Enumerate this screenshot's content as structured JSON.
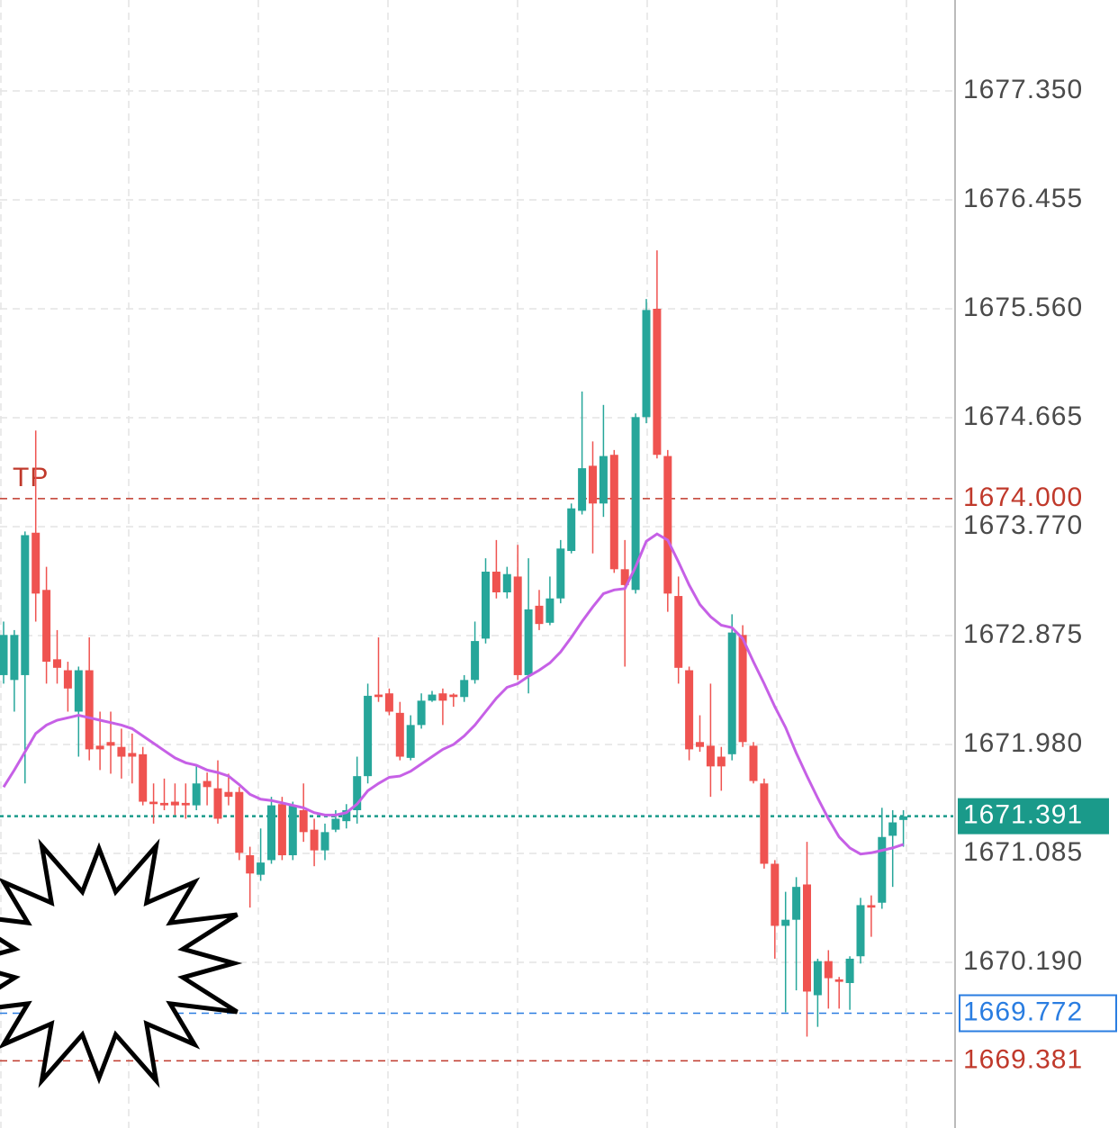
{
  "chart_data": {
    "type": "candlestick",
    "ylim": [
      1668.829,
      1678.097
    ],
    "yticks": [
      {
        "value": 1677.35,
        "label": "1677.350"
      },
      {
        "value": 1676.455,
        "label": "1676.455"
      },
      {
        "value": 1675.56,
        "label": "1675.560"
      },
      {
        "value": 1674.665,
        "label": "1674.665"
      },
      {
        "value": 1673.77,
        "label": "1673.770"
      },
      {
        "value": 1672.875,
        "label": "1672.875"
      },
      {
        "value": 1671.98,
        "label": "1671.980"
      },
      {
        "value": 1671.085,
        "label": "1671.085"
      },
      {
        "value": 1670.19,
        "label": "1670.190"
      }
    ],
    "grid": true,
    "up_color": "#26a69a",
    "down_color": "#ef5350",
    "open": [
      1672.55,
      1672.51,
      1672.55,
      1673.72,
      1673.25,
      1672.68,
      1672.59,
      1672.25,
      1672.59,
      1671.97,
      1672.0,
      1671.96,
      1671.91,
      1671.9,
      1671.51,
      1671.5,
      1671.51,
      1671.5,
      1671.48,
      1671.68,
      1671.62,
      1671.59,
      1671.59,
      1671.07,
      1670.91,
      1671.03,
      1671.49,
      1671.07,
      1671.44,
      1671.28,
      1671.11,
      1671.28,
      1671.35,
      1671.44,
      1671.72,
      1672.39,
      1672.4,
      1672.24,
      1671.87,
      1672.14,
      1672.34,
      1672.4,
      1672.39,
      1672.37,
      1672.51,
      1672.85,
      1673.4,
      1673.23,
      1673.36,
      1672.55,
      1673.12,
      1672.98,
      1673.18,
      1673.57,
      1673.9,
      1674.27,
      1673.96,
      1674.36,
      1673.42,
      1673.25,
      1674.67,
      1675.56,
      1674.35,
      1673.2,
      1672.59,
      1672.0,
      1671.97,
      1671.88,
      1671.9,
      1672.88,
      1671.97,
      1671.66,
      1671.0,
      1670.49,
      1670.54,
      1670.83,
      1669.92,
      1670.2,
      1670.05,
      1670.02,
      1670.24,
      1670.66,
      1670.68,
      1671.23,
      1671.36
    ],
    "high": [
      1672.99,
      1672.92,
      1673.73,
      1674.56,
      1673.44,
      1672.92,
      1672.66,
      1672.62,
      1672.86,
      1672.25,
      1672.25,
      1672.11,
      1672.07,
      1671.96,
      1671.66,
      1671.7,
      1671.66,
      1671.66,
      1671.81,
      1671.75,
      1671.85,
      1671.74,
      1671.63,
      1671.14,
      1671.29,
      1671.55,
      1671.55,
      1671.51,
      1671.66,
      1671.37,
      1671.33,
      1671.44,
      1671.49,
      1671.88,
      1672.48,
      1672.86,
      1672.44,
      1672.33,
      1672.22,
      1672.4,
      1672.42,
      1672.44,
      1672.4,
      1672.55,
      1672.99,
      1673.51,
      1673.66,
      1673.44,
      1673.62,
      1673.51,
      1673.25,
      1673.36,
      1673.66,
      1673.96,
      1674.88,
      1674.47,
      1674.77,
      1674.4,
      1673.66,
      1674.7,
      1675.64,
      1676.04,
      1674.4,
      1673.36,
      1672.62,
      1672.22,
      1672.48,
      1671.96,
      1673.05,
      1672.96,
      1672.0,
      1671.7,
      1671.03,
      1670.77,
      1670.89,
      1671.18,
      1670.22,
      1670.29,
      1670.07,
      1670.24,
      1670.72,
      1670.74,
      1671.46,
      1671.44,
      1671.44
    ],
    "low": [
      1672.48,
      1672.25,
      1671.66,
      1672.99,
      1672.48,
      1672.48,
      1672.25,
      1671.88,
      1671.85,
      1671.77,
      1671.74,
      1671.7,
      1671.66,
      1671.48,
      1671.33,
      1671.44,
      1671.4,
      1671.37,
      1671.44,
      1671.48,
      1671.33,
      1671.48,
      1671.03,
      1670.64,
      1670.86,
      1671.0,
      1671.03,
      1671.03,
      1671.18,
      1670.98,
      1671.03,
      1671.26,
      1671.29,
      1671.33,
      1671.66,
      1672.33,
      1672.22,
      1671.85,
      1671.85,
      1672.11,
      1672.33,
      1672.14,
      1672.29,
      1672.33,
      1672.48,
      1672.81,
      1673.18,
      1673.18,
      1672.51,
      1672.4,
      1672.92,
      1672.96,
      1673.14,
      1673.55,
      1673.87,
      1673.55,
      1673.85,
      1673.39,
      1672.62,
      1673.22,
      1674.62,
      1674.33,
      1673.07,
      1672.48,
      1671.85,
      1671.92,
      1671.55,
      1671.6,
      1671.85,
      1671.96,
      1671.66,
      1670.96,
      1670.22,
      1669.78,
      1669.96,
      1669.58,
      1669.66,
      1669.81,
      1669.81,
      1669.8,
      1670.18,
      1670.4,
      1670.63,
      1670.81,
      1671.14
    ],
    "close": [
      1672.88,
      1672.88,
      1673.7,
      1673.22,
      1672.66,
      1672.61,
      1672.44,
      1672.59,
      1671.94,
      1671.94,
      1671.97,
      1671.88,
      1671.88,
      1671.51,
      1671.49,
      1671.48,
      1671.48,
      1671.48,
      1671.66,
      1671.63,
      1671.37,
      1671.55,
      1671.09,
      1670.92,
      1671.01,
      1671.48,
      1671.07,
      1671.48,
      1671.26,
      1671.11,
      1671.26,
      1671.37,
      1671.44,
      1671.72,
      1672.38,
      1672.37,
      1672.25,
      1671.88,
      1672.14,
      1672.34,
      1672.39,
      1672.34,
      1672.37,
      1672.51,
      1672.83,
      1673.4,
      1673.23,
      1673.38,
      1672.55,
      1673.09,
      1672.97,
      1673.18,
      1673.59,
      1673.92,
      1674.25,
      1673.96,
      1674.35,
      1673.42,
      1673.29,
      1674.67,
      1675.55,
      1674.36,
      1673.22,
      1672.61,
      1671.94,
      1671.96,
      1671.8,
      1671.8,
      1672.9,
      1672.0,
      1671.68,
      1671.0,
      1670.49,
      1670.54,
      1670.81,
      1669.95,
      1670.2,
      1670.06,
      1670.03,
      1670.22,
      1670.66,
      1670.64,
      1671.22,
      1671.34,
      1671.39
    ],
    "ma": {
      "color": "#c660e6",
      "values": [
        1671.63,
        1671.77,
        1671.92,
        1672.07,
        1672.14,
        1672.18,
        1672.2,
        1672.22,
        1672.2,
        1672.18,
        1672.16,
        1672.14,
        1672.11,
        1672.05,
        1671.99,
        1671.93,
        1671.87,
        1671.83,
        1671.81,
        1671.77,
        1671.75,
        1671.72,
        1671.65,
        1671.57,
        1671.53,
        1671.52,
        1671.5,
        1671.48,
        1671.46,
        1671.42,
        1671.4,
        1671.4,
        1671.42,
        1671.49,
        1671.6,
        1671.66,
        1671.71,
        1671.72,
        1671.76,
        1671.82,
        1671.88,
        1671.94,
        1671.98,
        1672.05,
        1672.14,
        1672.25,
        1672.36,
        1672.45,
        1672.48,
        1672.54,
        1672.59,
        1672.65,
        1672.74,
        1672.86,
        1672.99,
        1673.11,
        1673.22,
        1673.25,
        1673.26,
        1673.44,
        1673.65,
        1673.71,
        1673.66,
        1673.48,
        1673.29,
        1673.13,
        1673.03,
        1672.96,
        1672.94,
        1672.85,
        1672.66,
        1672.48,
        1672.29,
        1672.12,
        1671.91,
        1671.72,
        1671.54,
        1671.37,
        1671.22,
        1671.13,
        1671.08,
        1671.09,
        1671.11,
        1671.13,
        1671.16
      ]
    },
    "price_lines": [
      {
        "name": "TP",
        "price": {
          "value": 1674.0,
          "label": "1674.000"
        },
        "color": "#c0392b",
        "style": "dashed",
        "box": "none"
      },
      {
        "price": {
          "value": 1671.391,
          "label": "1671.391"
        },
        "color": "#1a9a8a",
        "style": "dotted",
        "box": "filled"
      },
      {
        "price": {
          "value": 1669.772,
          "label": "1669.772"
        },
        "color": "#2a7de1",
        "style": "dashed",
        "box": "outline"
      },
      {
        "price": {
          "value": 1669.381,
          "label": "1669.381"
        },
        "color": "#c0392b",
        "style": "dashed",
        "box": "none"
      }
    ]
  }
}
